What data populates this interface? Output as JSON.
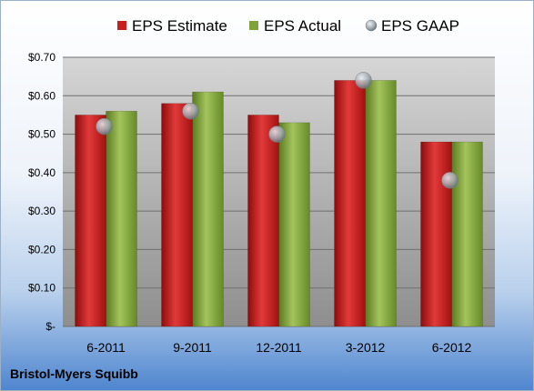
{
  "company": "Bristol-Myers Squibb",
  "chart_data": {
    "type": "bar",
    "categories": [
      "6-2011",
      "9-2011",
      "12-2011",
      "3-2012",
      "6-2012"
    ],
    "series": [
      {
        "name": "EPS Estimate",
        "kind": "bar",
        "color": "#c81e1e",
        "values": [
          0.55,
          0.58,
          0.55,
          0.64,
          0.48
        ]
      },
      {
        "name": "EPS Actual",
        "kind": "bar",
        "color": "#7fa33a",
        "values": [
          0.56,
          0.61,
          0.53,
          0.64,
          0.48
        ]
      },
      {
        "name": "EPS GAAP",
        "kind": "marker",
        "color": "#9aa3ad",
        "values": [
          0.52,
          0.56,
          0.5,
          0.64,
          0.38
        ]
      }
    ],
    "ylim": [
      0,
      0.7
    ],
    "yticks": [
      0,
      0.1,
      0.2,
      0.3,
      0.4,
      0.5,
      0.6,
      0.7
    ],
    "ytick_labels": [
      "$-",
      "$0.10",
      "$0.20",
      "$0.30",
      "$0.40",
      "$0.50",
      "$0.60",
      "$0.70"
    ],
    "legend_position": "top",
    "grid": true
  }
}
